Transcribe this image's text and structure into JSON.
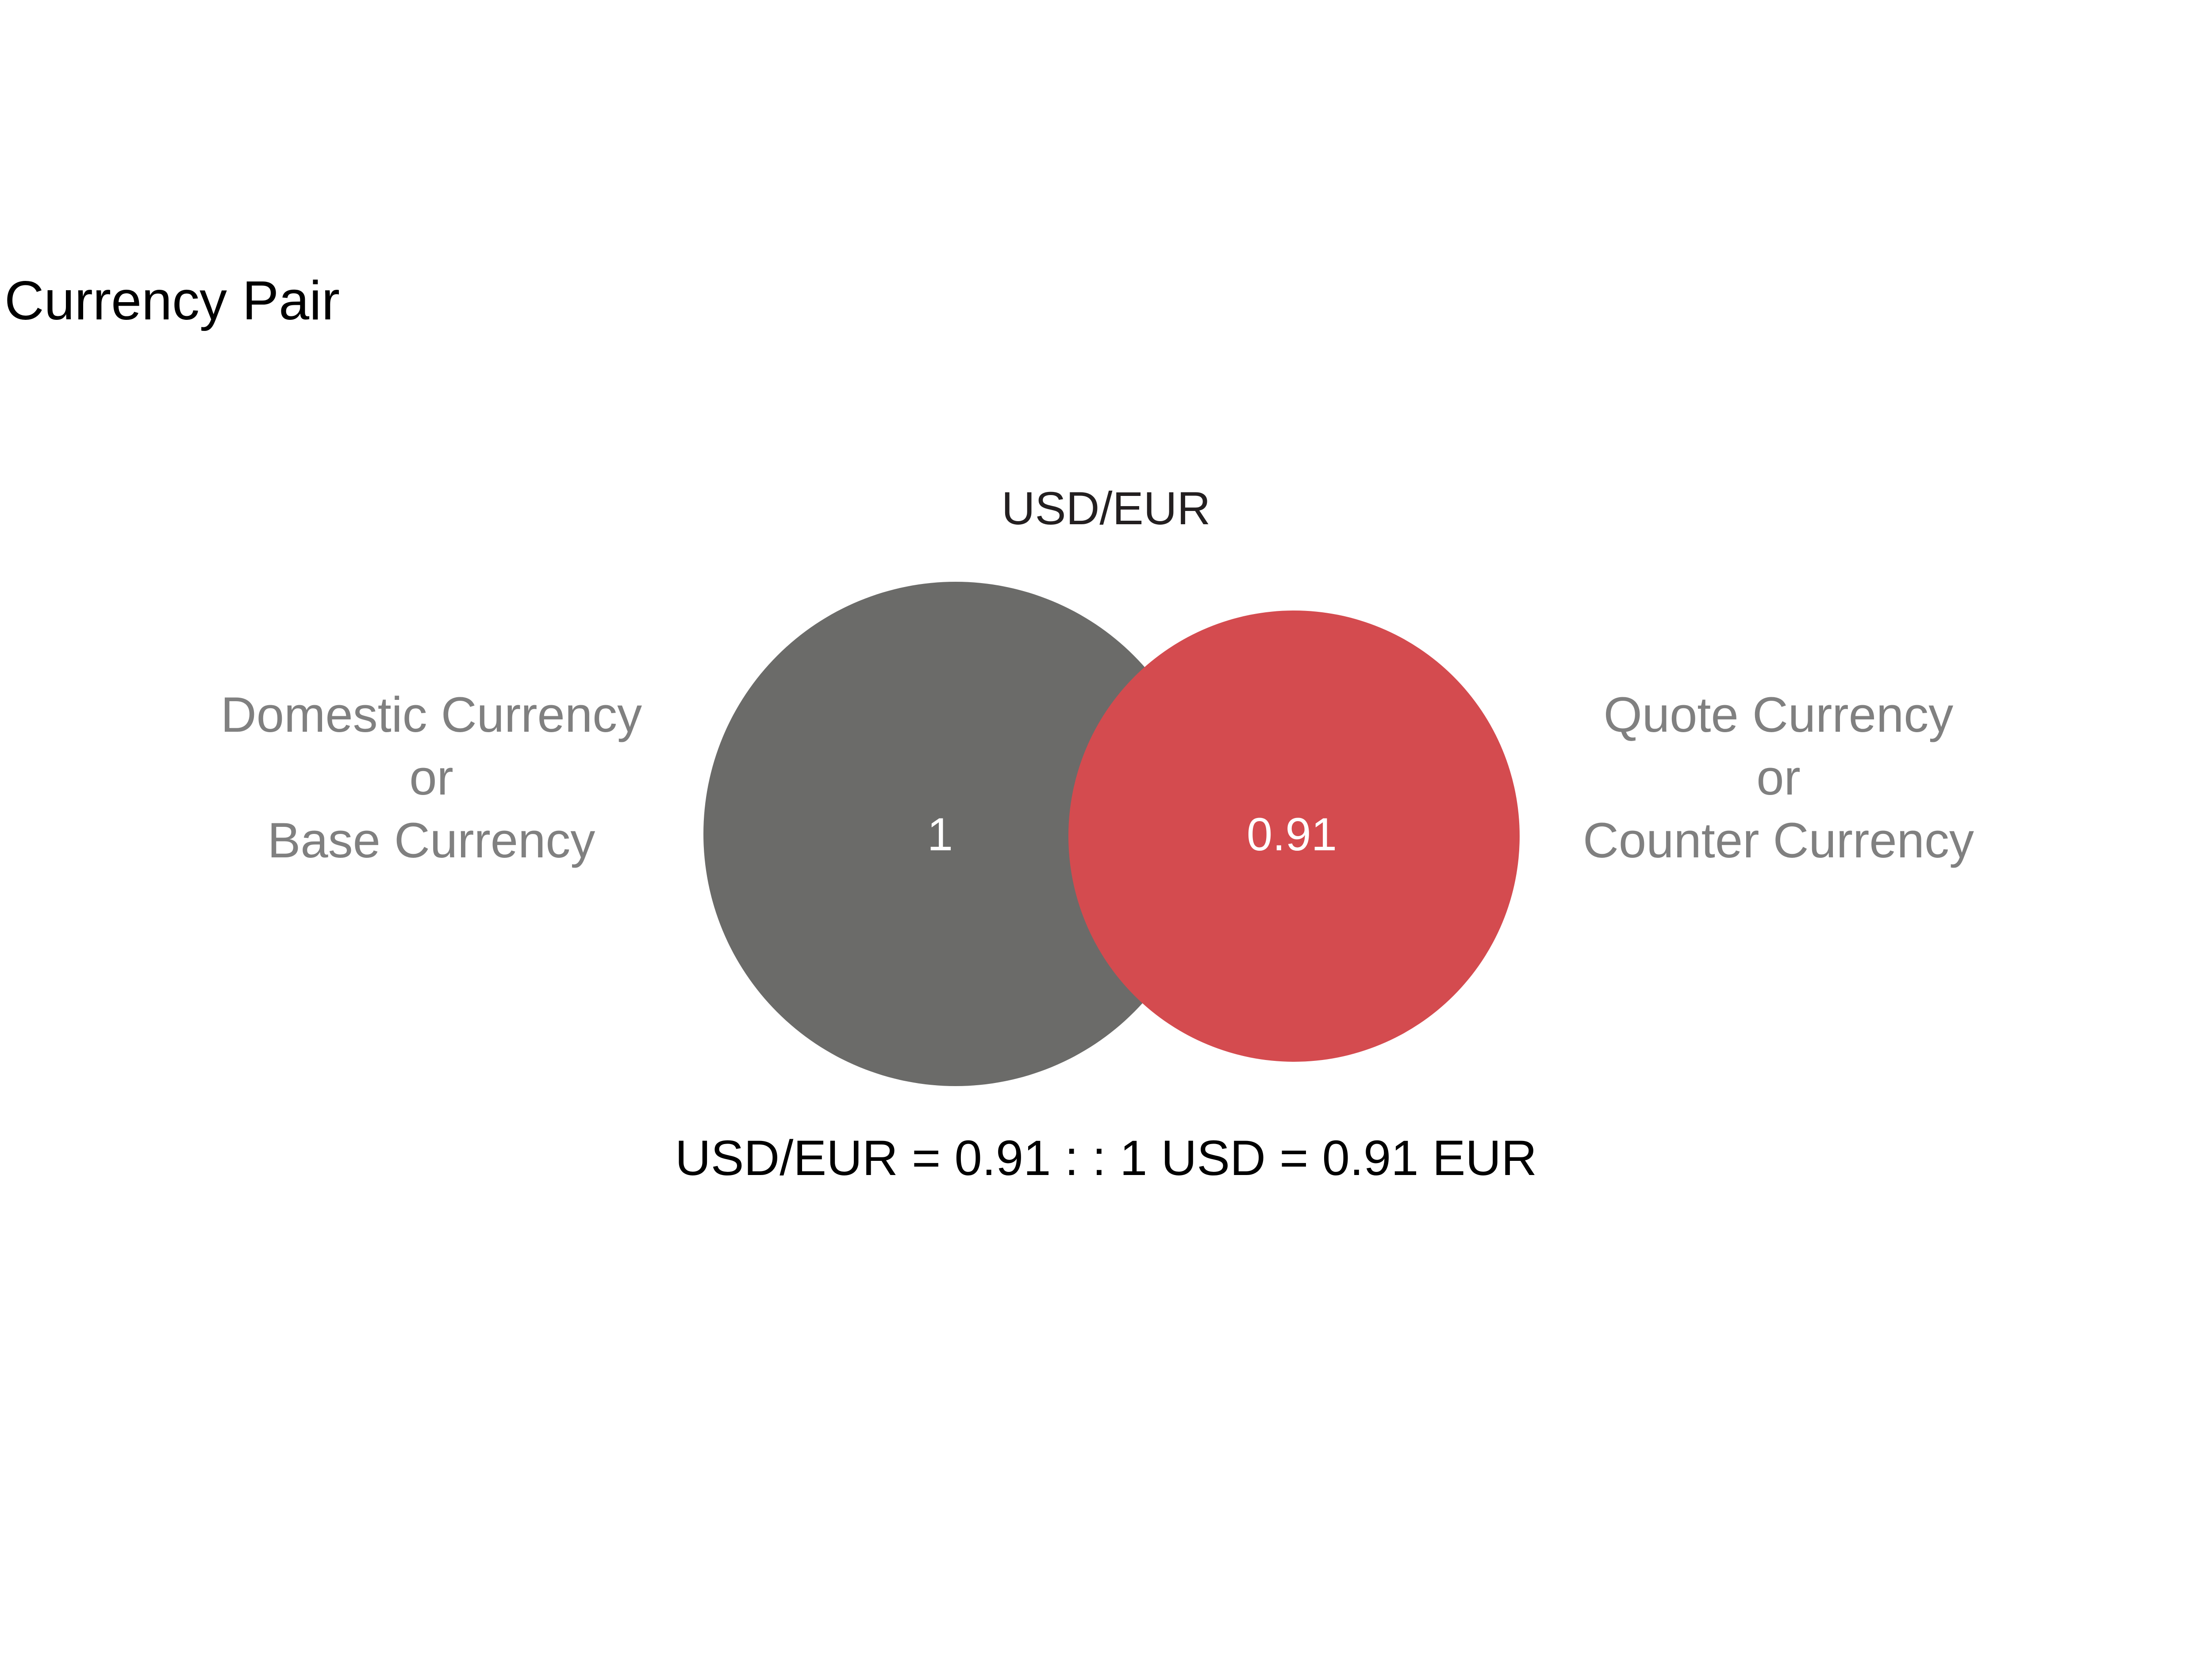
{
  "title": "Currency Pair",
  "pair_label": "USD/EUR",
  "base": {
    "label_lines": [
      "Domestic Currency",
      "or",
      "Base Currency"
    ],
    "value": "1",
    "color": "#6b6b69"
  },
  "quote": {
    "label_lines": [
      "Quote Currency",
      "or",
      "Counter Currency"
    ],
    "value": "0.91",
    "color": "#d44b4f"
  },
  "equation": "USD/EUR = 0.91 : : 1 USD = 0.91 EUR",
  "colors": {
    "side_label": "#808080",
    "background": "#ffffff"
  }
}
